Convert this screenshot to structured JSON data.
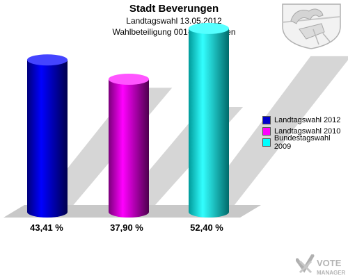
{
  "header": {
    "title": "Stadt Beverungen",
    "subtitle_1": "Landtagswahl 13.05.2012",
    "subtitle_2": "Wahlbeteiligung 001-Beverungen"
  },
  "chart_data": {
    "type": "bar",
    "title": "Stadt Beverungen",
    "subtitle": [
      "Landtagswahl 13.05.2012",
      "Wahlbeteiligung 001-Beverungen"
    ],
    "categories": [
      "Landtagswahl 2012",
      "Landtagswahl 2010",
      "Bundestagswahl 2009"
    ],
    "values": [
      43.41,
      37.9,
      52.4
    ],
    "value_labels": [
      "43,41 %",
      "37,90 %",
      "52,40 %"
    ],
    "colors": [
      "#0000cc",
      "#cc00cc",
      "#00e0e0"
    ],
    "ylim": [
      0,
      60
    ],
    "legend_position": "right",
    "grid": false
  },
  "legend": [
    {
      "label": "Landtagswahl 2012",
      "color": "#0000cc"
    },
    {
      "label": "Landtagswahl 2010",
      "color": "#ff00ff"
    },
    {
      "label": "Bundestagswahl 2009",
      "color": "#00ffff"
    }
  ],
  "branding": {
    "logo_text": "VOTE MANAGER",
    "logo_icon": "vote-manager-logo-icon",
    "crest_icon": "nrw-coat-of-arms-icon"
  }
}
